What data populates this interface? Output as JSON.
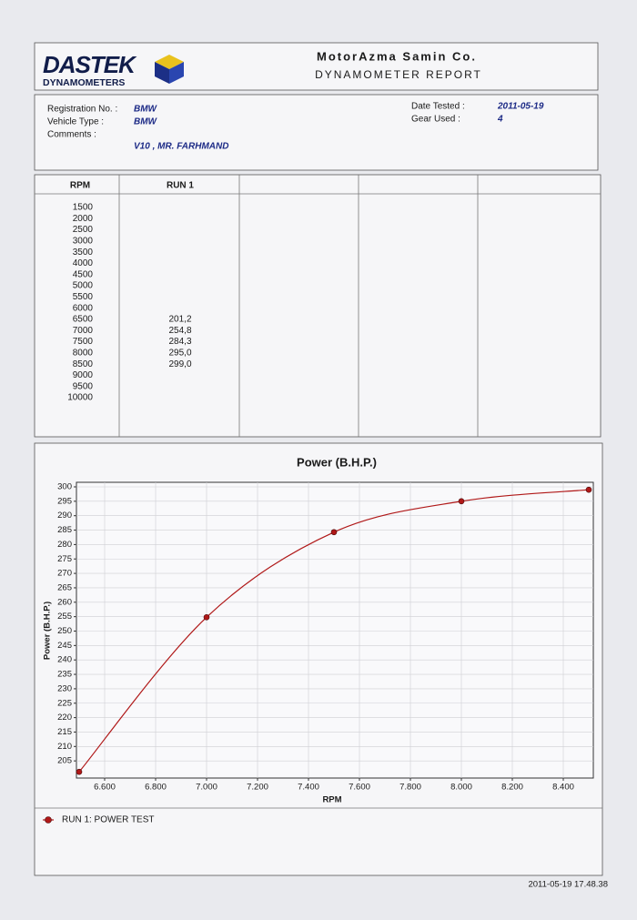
{
  "header": {
    "logo": "DASTEK",
    "logo_sub": "DYNAMOMETERS",
    "company": "MotorAzma Samin Co.",
    "report_title": "DYNAMOMETER REPORT"
  },
  "info": {
    "fields": [
      {
        "label": "Registration No. :",
        "value": "BMW"
      },
      {
        "label": "Vehicle Type :",
        "value": "BMW"
      },
      {
        "label": "Comments :",
        "value": "V10 , MR. FARHMAND"
      },
      {
        "label": "Date Tested :",
        "value": "2011-05-19"
      },
      {
        "label": "Gear Used :",
        "value": "4"
      }
    ]
  },
  "table": {
    "headers": [
      "RPM",
      "RUN 1"
    ],
    "rows": [
      [
        "1500",
        null
      ],
      [
        "2000",
        null
      ],
      [
        "2500",
        null
      ],
      [
        "3000",
        null
      ],
      [
        "3500",
        null
      ],
      [
        "4000",
        null
      ],
      [
        "4500",
        null
      ],
      [
        "5000",
        null
      ],
      [
        "5500",
        null
      ],
      [
        "6000",
        null
      ],
      [
        "6500",
        "201,2"
      ],
      [
        "7000",
        "254,8"
      ],
      [
        "7500",
        "284,3"
      ],
      [
        "8000",
        "295,0"
      ],
      [
        "8500",
        "299,0"
      ],
      [
        "9000",
        null
      ],
      [
        "9500",
        null
      ],
      [
        "10000",
        null
      ]
    ]
  },
  "chart_data": {
    "type": "line",
    "title": "Power (B.H.P.)",
    "x_label": "RPM",
    "y_label": "Power (B.H.P.)",
    "x": [
      6500,
      7000,
      7500,
      8000,
      8500
    ],
    "series": [
      {
        "name": "RUN 1: POWER TEST",
        "color": "#b01818",
        "values": [
          201.2,
          254.8,
          284.3,
          295.0,
          299.0
        ]
      }
    ],
    "xlim": [
      6500,
      8500
    ],
    "xticks": [
      {
        "value": 6600,
        "label": "6.600"
      },
      {
        "value": 6800,
        "label": "6.800"
      },
      {
        "value": 7000,
        "label": "7.000"
      },
      {
        "value": 7200,
        "label": "7.200"
      },
      {
        "value": 7400,
        "label": "7.400"
      },
      {
        "value": 7600,
        "label": "7.600"
      },
      {
        "value": 7800,
        "label": "7.800"
      },
      {
        "value": 8000,
        "label": "8.000"
      },
      {
        "value": 8200,
        "label": "8.200"
      },
      {
        "value": 8400,
        "label": "8.400"
      }
    ],
    "ylim": [
      200,
      300
    ],
    "yticks": [
      205,
      210,
      215,
      220,
      225,
      230,
      235,
      240,
      245,
      250,
      255,
      260,
      265,
      270,
      275,
      280,
      285,
      290,
      295,
      300
    ],
    "grid": true,
    "legend": "bottom"
  },
  "footer": {
    "timestamp": "2011-05-19 17.48.38"
  }
}
